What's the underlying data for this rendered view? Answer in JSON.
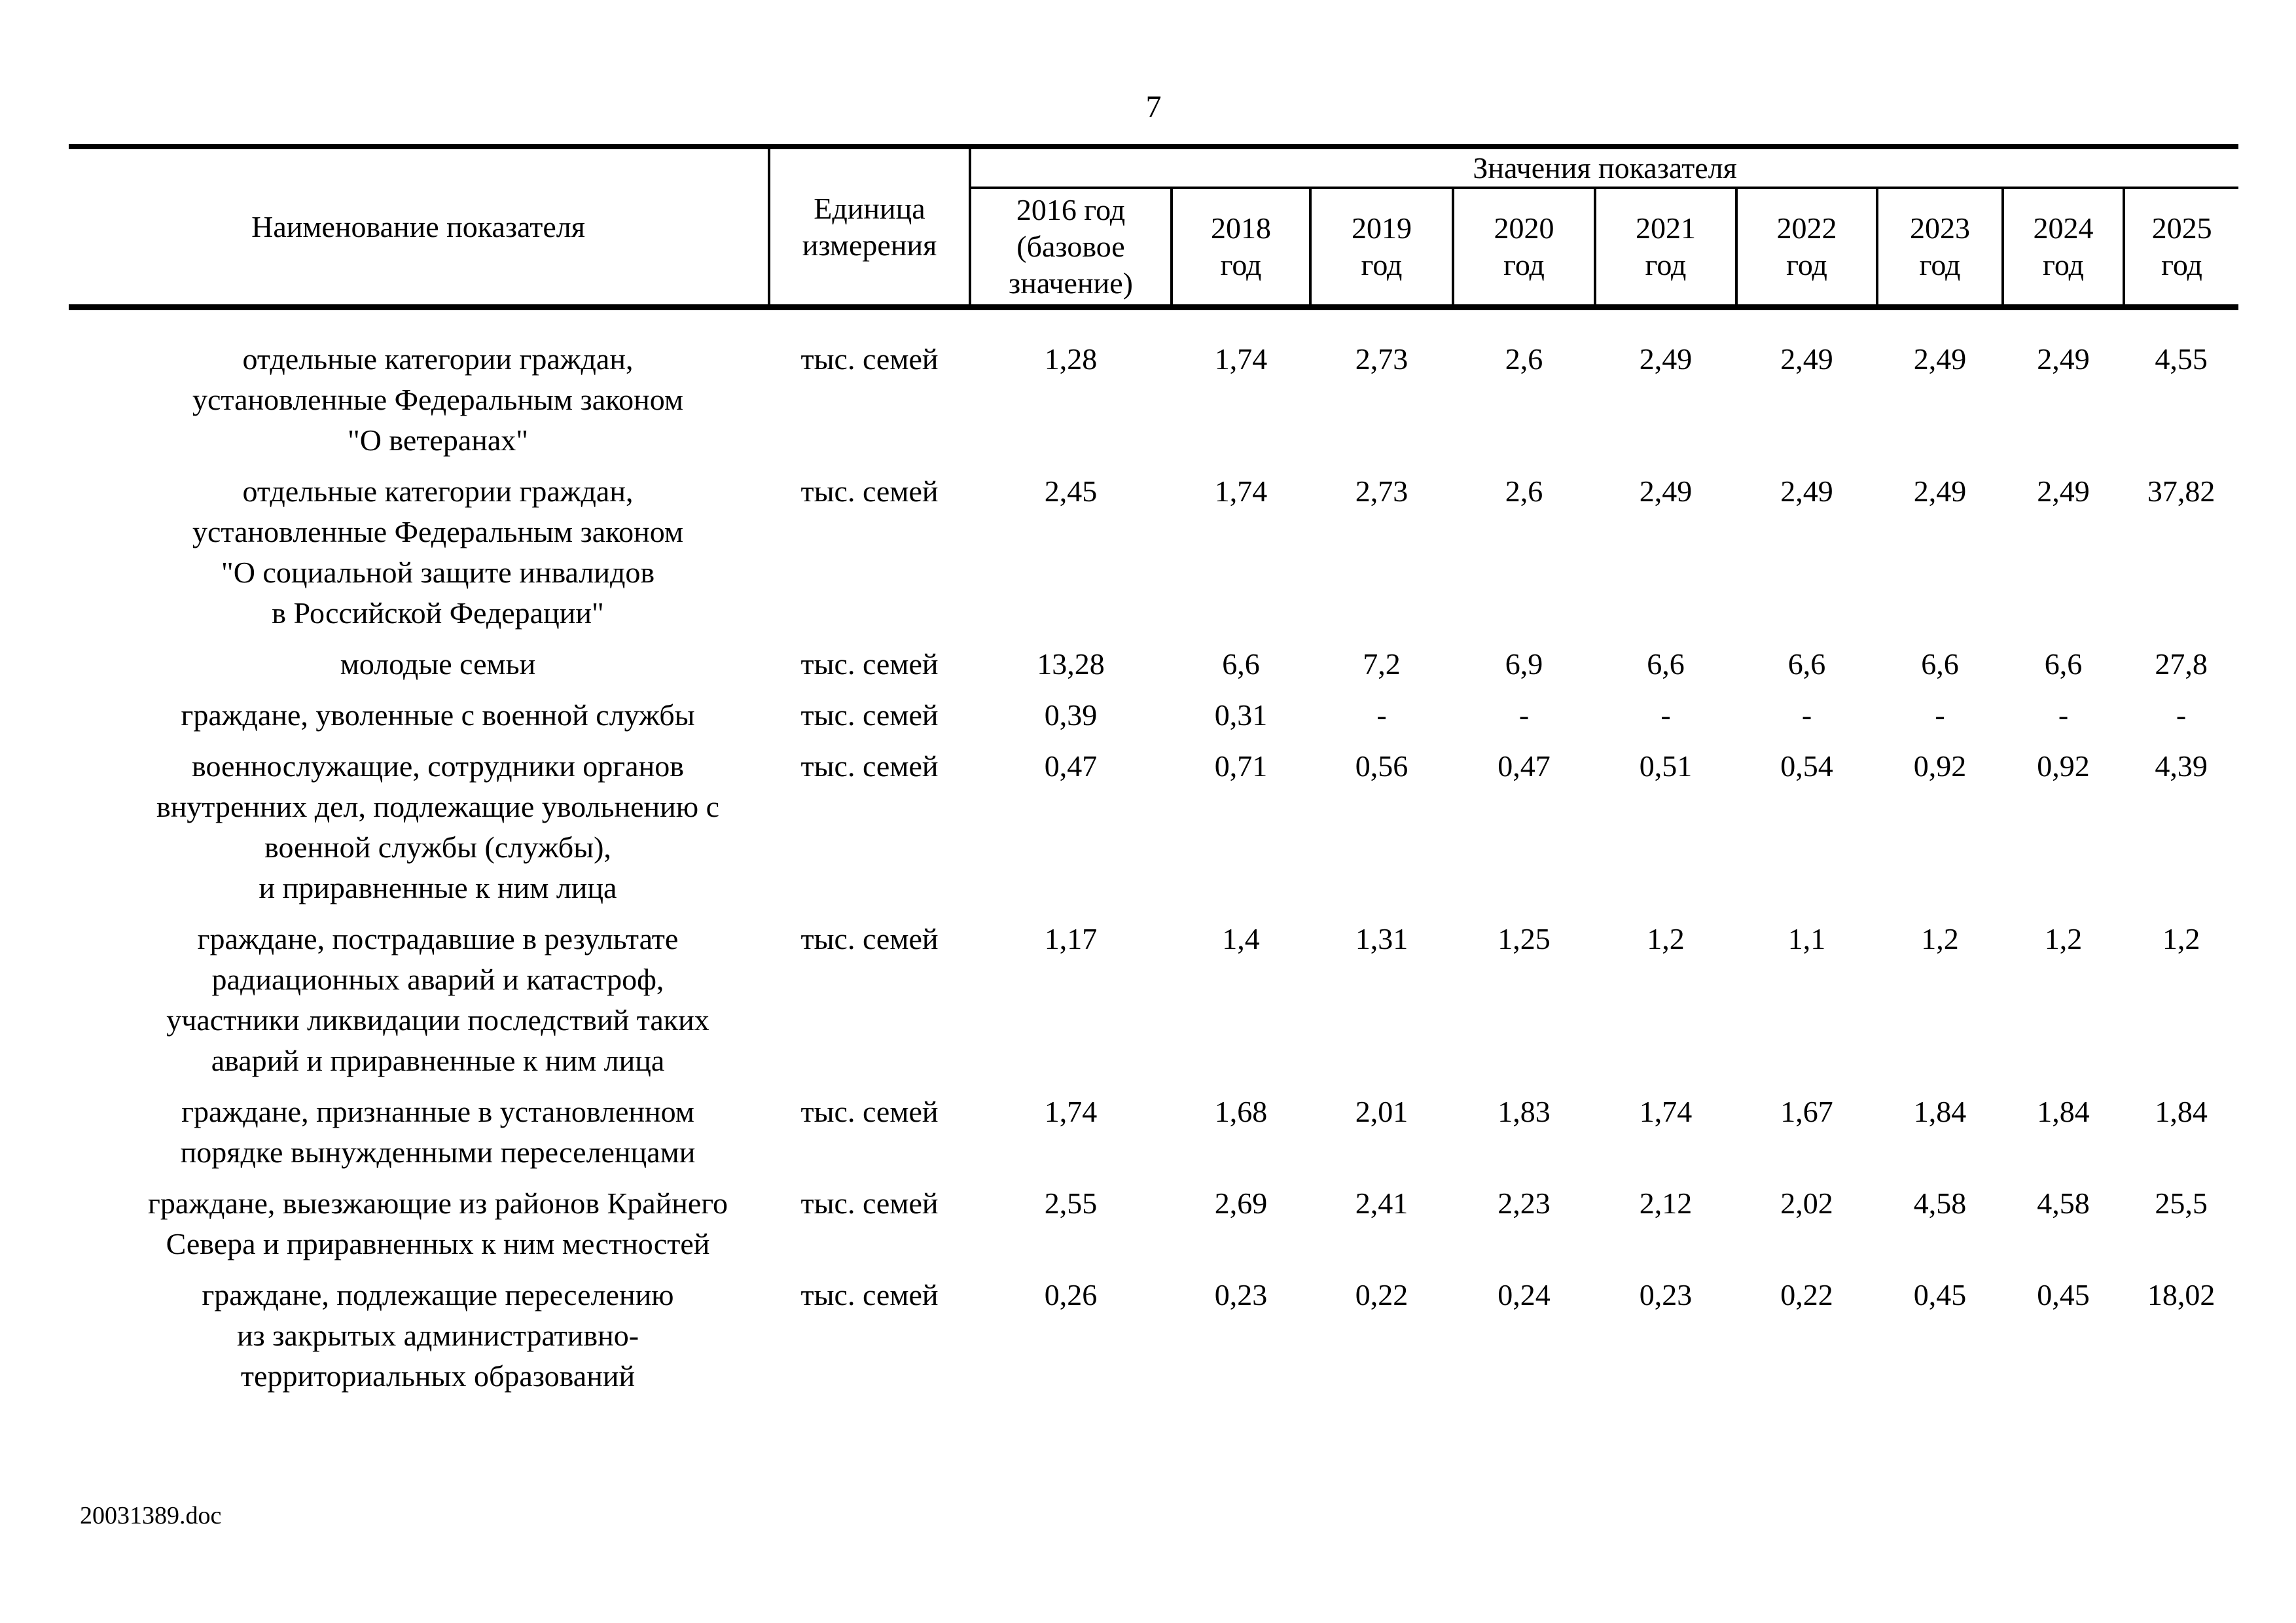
{
  "page": {
    "number": "7",
    "footer": "20031389.doc"
  },
  "table": {
    "header": {
      "name": "Наименование показателя",
      "unit": "Единица\nизмерения",
      "values_group": "Значения показателя",
      "year_columns": [
        "2016 год\n(базовое\nзначение)",
        "2018\nгод",
        "2019\nгод",
        "2020\nгод",
        "2021\nгод",
        "2022\nгод",
        "2023\nгод",
        "2024\nгод",
        "2025\nгод"
      ]
    },
    "rows": [
      {
        "name": "отдельные категории граждан,\nустановленные Федеральным законом\n\"О ветеранах\"",
        "unit": "тыс. семей",
        "values": [
          "1,28",
          "1,74",
          "2,73",
          "2,6",
          "2,49",
          "2,49",
          "2,49",
          "2,49",
          "4,55"
        ]
      },
      {
        "name": "отдельные категории граждан,\nустановленные Федеральным законом\n\"О социальной защите инвалидов\nв Российской Федерации\"",
        "unit": "тыс. семей",
        "values": [
          "2,45",
          "1,74",
          "2,73",
          "2,6",
          "2,49",
          "2,49",
          "2,49",
          "2,49",
          "37,82"
        ]
      },
      {
        "name": "молодые семьи",
        "unit": "тыс. семей",
        "values": [
          "13,28",
          "6,6",
          "7,2",
          "6,9",
          "6,6",
          "6,6",
          "6,6",
          "6,6",
          "27,8"
        ]
      },
      {
        "name": "граждане, уволенные с военной службы",
        "unit": "тыс. семей",
        "values": [
          "0,39",
          "0,31",
          "-",
          "-",
          "-",
          "-",
          "-",
          "-",
          "-"
        ]
      },
      {
        "name": "военнослужащие, сотрудники органов\nвнутренних дел, подлежащие увольнению с\nвоенной службы (службы),\nи приравненные к ним лица",
        "unit": "тыс. семей",
        "values": [
          "0,47",
          "0,71",
          "0,56",
          "0,47",
          "0,51",
          "0,54",
          "0,92",
          "0,92",
          "4,39"
        ]
      },
      {
        "name": "граждане, пострадавшие в результате\nрадиационных аварий и катастроф,\nучастники ликвидации последствий таких\nаварий и приравненные к ним лица",
        "unit": "тыс. семей",
        "values": [
          "1,17",
          "1,4",
          "1,31",
          "1,25",
          "1,2",
          "1,1",
          "1,2",
          "1,2",
          "1,2"
        ]
      },
      {
        "name": "граждане, признанные в установленном\nпорядке вынужденными переселенцами",
        "unit": "тыс. семей",
        "values": [
          "1,74",
          "1,68",
          "2,01",
          "1,83",
          "1,74",
          "1,67",
          "1,84",
          "1,84",
          "1,84"
        ]
      },
      {
        "name": "граждане, выезжающие из районов Крайнего\nСевера и приравненных к ним местностей",
        "unit": "тыс. семей",
        "values": [
          "2,55",
          "2,69",
          "2,41",
          "2,23",
          "2,12",
          "2,02",
          "4,58",
          "4,58",
          "25,5"
        ]
      },
      {
        "name": "граждане, подлежащие переселению\nиз закрытых административно-\nтерриториальных образований",
        "unit": "тыс. семей",
        "values": [
          "0,26",
          "0,23",
          "0,22",
          "0,24",
          "0,23",
          "0,22",
          "0,45",
          "0,45",
          "18,02"
        ]
      }
    ]
  }
}
